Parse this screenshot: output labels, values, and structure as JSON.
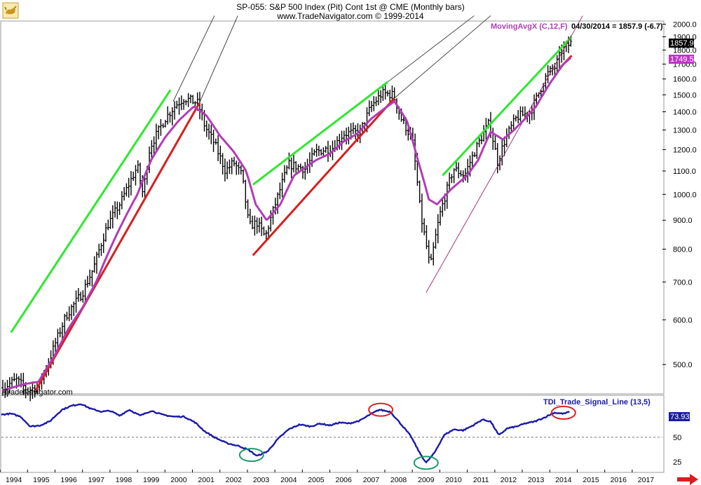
{
  "header": {
    "title_line1": "SP-055:  S&P 500 Index (Pit) Cont 1st @ CME  (Monthly bars)",
    "title_line2": "www.TradeNavigator.com © 1999-2014"
  },
  "main_legend": {
    "ma_label": "MovingAvgX (C,12,F)",
    "ma_color": "#b23cb5",
    "readout": "04/30/2014 = 1857.9 (-6.7)"
  },
  "price_badges": {
    "last_close": "1857.9",
    "last_close_bg": "#000000",
    "ma_value": "1749.5",
    "ma_bg": "#c032c8"
  },
  "watermark": "TradeNavigator.com",
  "indicator_legend": {
    "label": "TDI_Trade_Signal_Line (13,5)",
    "color": "#1a1aa6",
    "value": "73.93"
  },
  "colors": {
    "price_bars": "#000000",
    "moving_average": "#b23cb5",
    "upper_trend": "#2ee82e",
    "lower_trend": "#d81e1e",
    "indicator": "#1a1aa6",
    "circle_red": "#e02020",
    "circle_green": "#1a9a6a",
    "nav_arrow": "#d81e1e"
  },
  "icons": {
    "nav_left": "bull-logo-icon",
    "nav_right": "scroll-right-arrow-icon"
  },
  "chart_data": [
    {
      "type": "ohlc",
      "title": "SP-055:  S&P 500 Index (Pit) Cont 1st @ CME  (Monthly bars)",
      "y_scale": "log",
      "ylim": [
        445,
        2020
      ],
      "y_ticks": [
        500,
        600,
        700,
        800,
        900,
        1000,
        1100,
        1200,
        1300,
        1400,
        1500,
        1600,
        1700,
        1800,
        1900,
        2000
      ],
      "y_tick_labels": [
        "500.0",
        "600.0",
        "700.0",
        "800.0",
        "900.0",
        "1000.0",
        "1100.0",
        "1200.0",
        "1300.0",
        "1400.0",
        "1500.0",
        "1600.0",
        "1700.0",
        "1800.0",
        "1900.0",
        "2000.0"
      ],
      "xlim": [
        1993.55,
        2017.6
      ],
      "x_ticks": [
        1994,
        1995,
        1996,
        1997,
        1998,
        1999,
        2000,
        2001,
        2002,
        2003,
        2004,
        2005,
        2006,
        2007,
        2008,
        2009,
        2010,
        2011,
        2012,
        2013,
        2014,
        2015,
        2016,
        2017
      ],
      "x_tick_labels": [
        "1994",
        "1995",
        "1996",
        "1997",
        "1998",
        "1999",
        "2000",
        "2001",
        "2002",
        "2003",
        "2004",
        "2005",
        "2006",
        "2007",
        "2008",
        "2009",
        "2010",
        "2011",
        "2012",
        "2013",
        "2014",
        "2015",
        "2016",
        "2017"
      ],
      "close_anchors": [
        [
          1993.6,
          455
        ],
        [
          1994.1,
          470
        ],
        [
          1994.5,
          450
        ],
        [
          1994.9,
          458
        ],
        [
          1995.3,
          510
        ],
        [
          1995.9,
          610
        ],
        [
          1996.5,
          670
        ],
        [
          1996.9,
          740
        ],
        [
          1997.4,
          880
        ],
        [
          1997.9,
          970
        ],
        [
          1998.5,
          1120
        ],
        [
          1998.7,
          1000
        ],
        [
          1998.95,
          1210
        ],
        [
          1999.5,
          1360
        ],
        [
          1999.9,
          1440
        ],
        [
          2000.2,
          1480
        ],
        [
          2000.7,
          1450
        ],
        [
          2000.95,
          1320
        ],
        [
          2001.3,
          1230
        ],
        [
          2001.7,
          1100
        ],
        [
          2002.0,
          1140
        ],
        [
          2002.3,
          1080
        ],
        [
          2002.55,
          880
        ],
        [
          2002.85,
          890
        ],
        [
          2003.15,
          840
        ],
        [
          2003.6,
          990
        ],
        [
          2004.0,
          1130
        ],
        [
          2004.6,
          1110
        ],
        [
          2005.0,
          1190
        ],
        [
          2005.6,
          1210
        ],
        [
          2006.0,
          1280
        ],
        [
          2006.6,
          1290
        ],
        [
          2007.0,
          1430
        ],
        [
          2007.4,
          1510
        ],
        [
          2007.8,
          1500
        ],
        [
          2008.1,
          1360
        ],
        [
          2008.5,
          1250
        ],
        [
          2008.8,
          920
        ],
        [
          2009.15,
          740
        ],
        [
          2009.5,
          920
        ],
        [
          2010.0,
          1110
        ],
        [
          2010.4,
          1080
        ],
        [
          2010.9,
          1230
        ],
        [
          2011.3,
          1340
        ],
        [
          2011.6,
          1140
        ],
        [
          2011.9,
          1260
        ],
        [
          2012.3,
          1370
        ],
        [
          2012.8,
          1400
        ],
        [
          2013.0,
          1470
        ],
        [
          2013.4,
          1630
        ],
        [
          2013.7,
          1680
        ],
        [
          2013.95,
          1800
        ],
        [
          2014.3,
          1857.9
        ]
      ],
      "moving_average_anchors": [
        [
          1993.6,
          450
        ],
        [
          1994.4,
          462
        ],
        [
          1994.9,
          466
        ],
        [
          1995.5,
          520
        ],
        [
          1996.0,
          580
        ],
        [
          1996.5,
          630
        ],
        [
          1997.0,
          700
        ],
        [
          1997.5,
          800
        ],
        [
          1998.0,
          900
        ],
        [
          1998.5,
          1000
        ],
        [
          1999.0,
          1150
        ],
        [
          1999.5,
          1260
        ],
        [
          2000.0,
          1350
        ],
        [
          2000.55,
          1430
        ],
        [
          2001.0,
          1380
        ],
        [
          2001.5,
          1270
        ],
        [
          2002.0,
          1190
        ],
        [
          2002.45,
          1100
        ],
        [
          2002.8,
          960
        ],
        [
          2003.2,
          900
        ],
        [
          2003.7,
          960
        ],
        [
          2004.2,
          1080
        ],
        [
          2005.0,
          1150
        ],
        [
          2005.5,
          1180
        ],
        [
          2006.0,
          1240
        ],
        [
          2006.5,
          1280
        ],
        [
          2007.0,
          1360
        ],
        [
          2007.5,
          1420
        ],
        [
          2007.85,
          1460
        ],
        [
          2008.3,
          1350
        ],
        [
          2008.7,
          1150
        ],
        [
          2009.1,
          980
        ],
        [
          2009.4,
          960
        ],
        [
          2009.9,
          1020
        ],
        [
          2010.5,
          1080
        ],
        [
          2010.9,
          1150
        ],
        [
          2011.35,
          1290
        ],
        [
          2011.8,
          1250
        ],
        [
          2012.2,
          1300
        ],
        [
          2012.6,
          1360
        ],
        [
          2013.0,
          1430
        ],
        [
          2013.5,
          1570
        ],
        [
          2014.0,
          1700
        ],
        [
          2014.3,
          1749.5
        ]
      ],
      "trend_lines": [
        {
          "color": "upper_trend",
          "from": [
            1993.9,
            570
          ],
          "to": [
            1999.7,
            1530
          ]
        },
        {
          "color": "lower_trend",
          "from": [
            1994.8,
            450
          ],
          "to": [
            2000.75,
            1450
          ]
        },
        {
          "color": "thin_black",
          "from": [
            1999.8,
            1460
          ],
          "to": [
            2001.3,
            2070
          ]
        },
        {
          "color": "thin_black",
          "from": [
            2000.75,
            1450
          ],
          "to": [
            2002.15,
            2070
          ]
        },
        {
          "color": "upper_trend",
          "from": [
            2002.7,
            1040
          ],
          "to": [
            2007.6,
            1580
          ]
        },
        {
          "color": "lower_trend",
          "from": [
            2002.7,
            780
          ],
          "to": [
            2007.85,
            1480
          ]
        },
        {
          "color": "thin_black",
          "from": [
            2007.6,
            1580
          ],
          "to": [
            2010.75,
            2070
          ]
        },
        {
          "color": "thin_black",
          "from": [
            2007.85,
            1480
          ],
          "to": [
            2011.35,
            2070
          ]
        },
        {
          "color": "upper_trend",
          "from": [
            2009.6,
            1080
          ],
          "to": [
            2014.3,
            1900
          ]
        },
        {
          "color": "lower_trend",
          "from": [
            2013.9,
            1680
          ],
          "to": [
            2014.3,
            1760
          ]
        },
        {
          "color": "thin_purple",
          "from": [
            2009.0,
            670
          ],
          "to": [
            2014.7,
            2070
          ]
        }
      ]
    },
    {
      "type": "line",
      "series": [
        {
          "name": "TDI_Trade_Signal_Line (13,5)",
          "anchors": [
            [
              1993.55,
              73
            ],
            [
              1993.9,
              74
            ],
            [
              1994.25,
              71
            ],
            [
              1994.6,
              61
            ],
            [
              1994.95,
              62
            ],
            [
              1995.3,
              66
            ],
            [
              1995.75,
              78
            ],
            [
              1996.1,
              82
            ],
            [
              1996.45,
              84
            ],
            [
              1996.8,
              79
            ],
            [
              1997.2,
              76
            ],
            [
              1997.5,
              77
            ],
            [
              1997.85,
              72
            ],
            [
              1998.2,
              78
            ],
            [
              1998.6,
              72
            ],
            [
              1999.0,
              77
            ],
            [
              1999.4,
              73
            ],
            [
              1999.8,
              71
            ],
            [
              2000.2,
              71
            ],
            [
              2000.6,
              65
            ],
            [
              2000.95,
              56
            ],
            [
              2001.3,
              50
            ],
            [
              2001.75,
              44
            ],
            [
              2002.2,
              41
            ],
            [
              2002.55,
              37
            ],
            [
              2002.85,
              31
            ],
            [
              2003.25,
              36
            ],
            [
              2003.6,
              48
            ],
            [
              2004.0,
              58
            ],
            [
              2004.4,
              63
            ],
            [
              2004.8,
              61
            ],
            [
              2005.15,
              64
            ],
            [
              2005.5,
              62
            ],
            [
              2005.85,
              65
            ],
            [
              2006.2,
              64
            ],
            [
              2006.6,
              67
            ],
            [
              2006.95,
              73
            ],
            [
              2007.3,
              78
            ],
            [
              2007.7,
              76
            ],
            [
              2008.1,
              63
            ],
            [
              2008.45,
              51
            ],
            [
              2008.75,
              35
            ],
            [
              2009.0,
              24
            ],
            [
              2009.3,
              34
            ],
            [
              2009.65,
              52
            ],
            [
              2010.0,
              58
            ],
            [
              2010.35,
              57
            ],
            [
              2010.7,
              62
            ],
            [
              2011.05,
              68
            ],
            [
              2011.35,
              66
            ],
            [
              2011.65,
              52
            ],
            [
              2011.95,
              59
            ],
            [
              2012.3,
              61
            ],
            [
              2012.6,
              64
            ],
            [
              2012.95,
              66
            ],
            [
              2013.3,
              70
            ],
            [
              2013.65,
              75
            ],
            [
              2014.0,
              74
            ],
            [
              2014.25,
              76
            ]
          ]
        }
      ],
      "ylim": [
        15,
        92
      ],
      "y_ticks": [
        25,
        50
      ],
      "y_tick_labels": [
        "25",
        "50"
      ],
      "reference_line": 50,
      "circles": [
        {
          "color": "circle_red",
          "center": [
            2007.35,
            78
          ]
        },
        {
          "color": "circle_green",
          "center": [
            2002.65,
            32
          ]
        },
        {
          "color": "circle_green",
          "center": [
            2009.0,
            24
          ]
        },
        {
          "color": "circle_red",
          "center": [
            2014.0,
            75
          ]
        }
      ]
    }
  ]
}
